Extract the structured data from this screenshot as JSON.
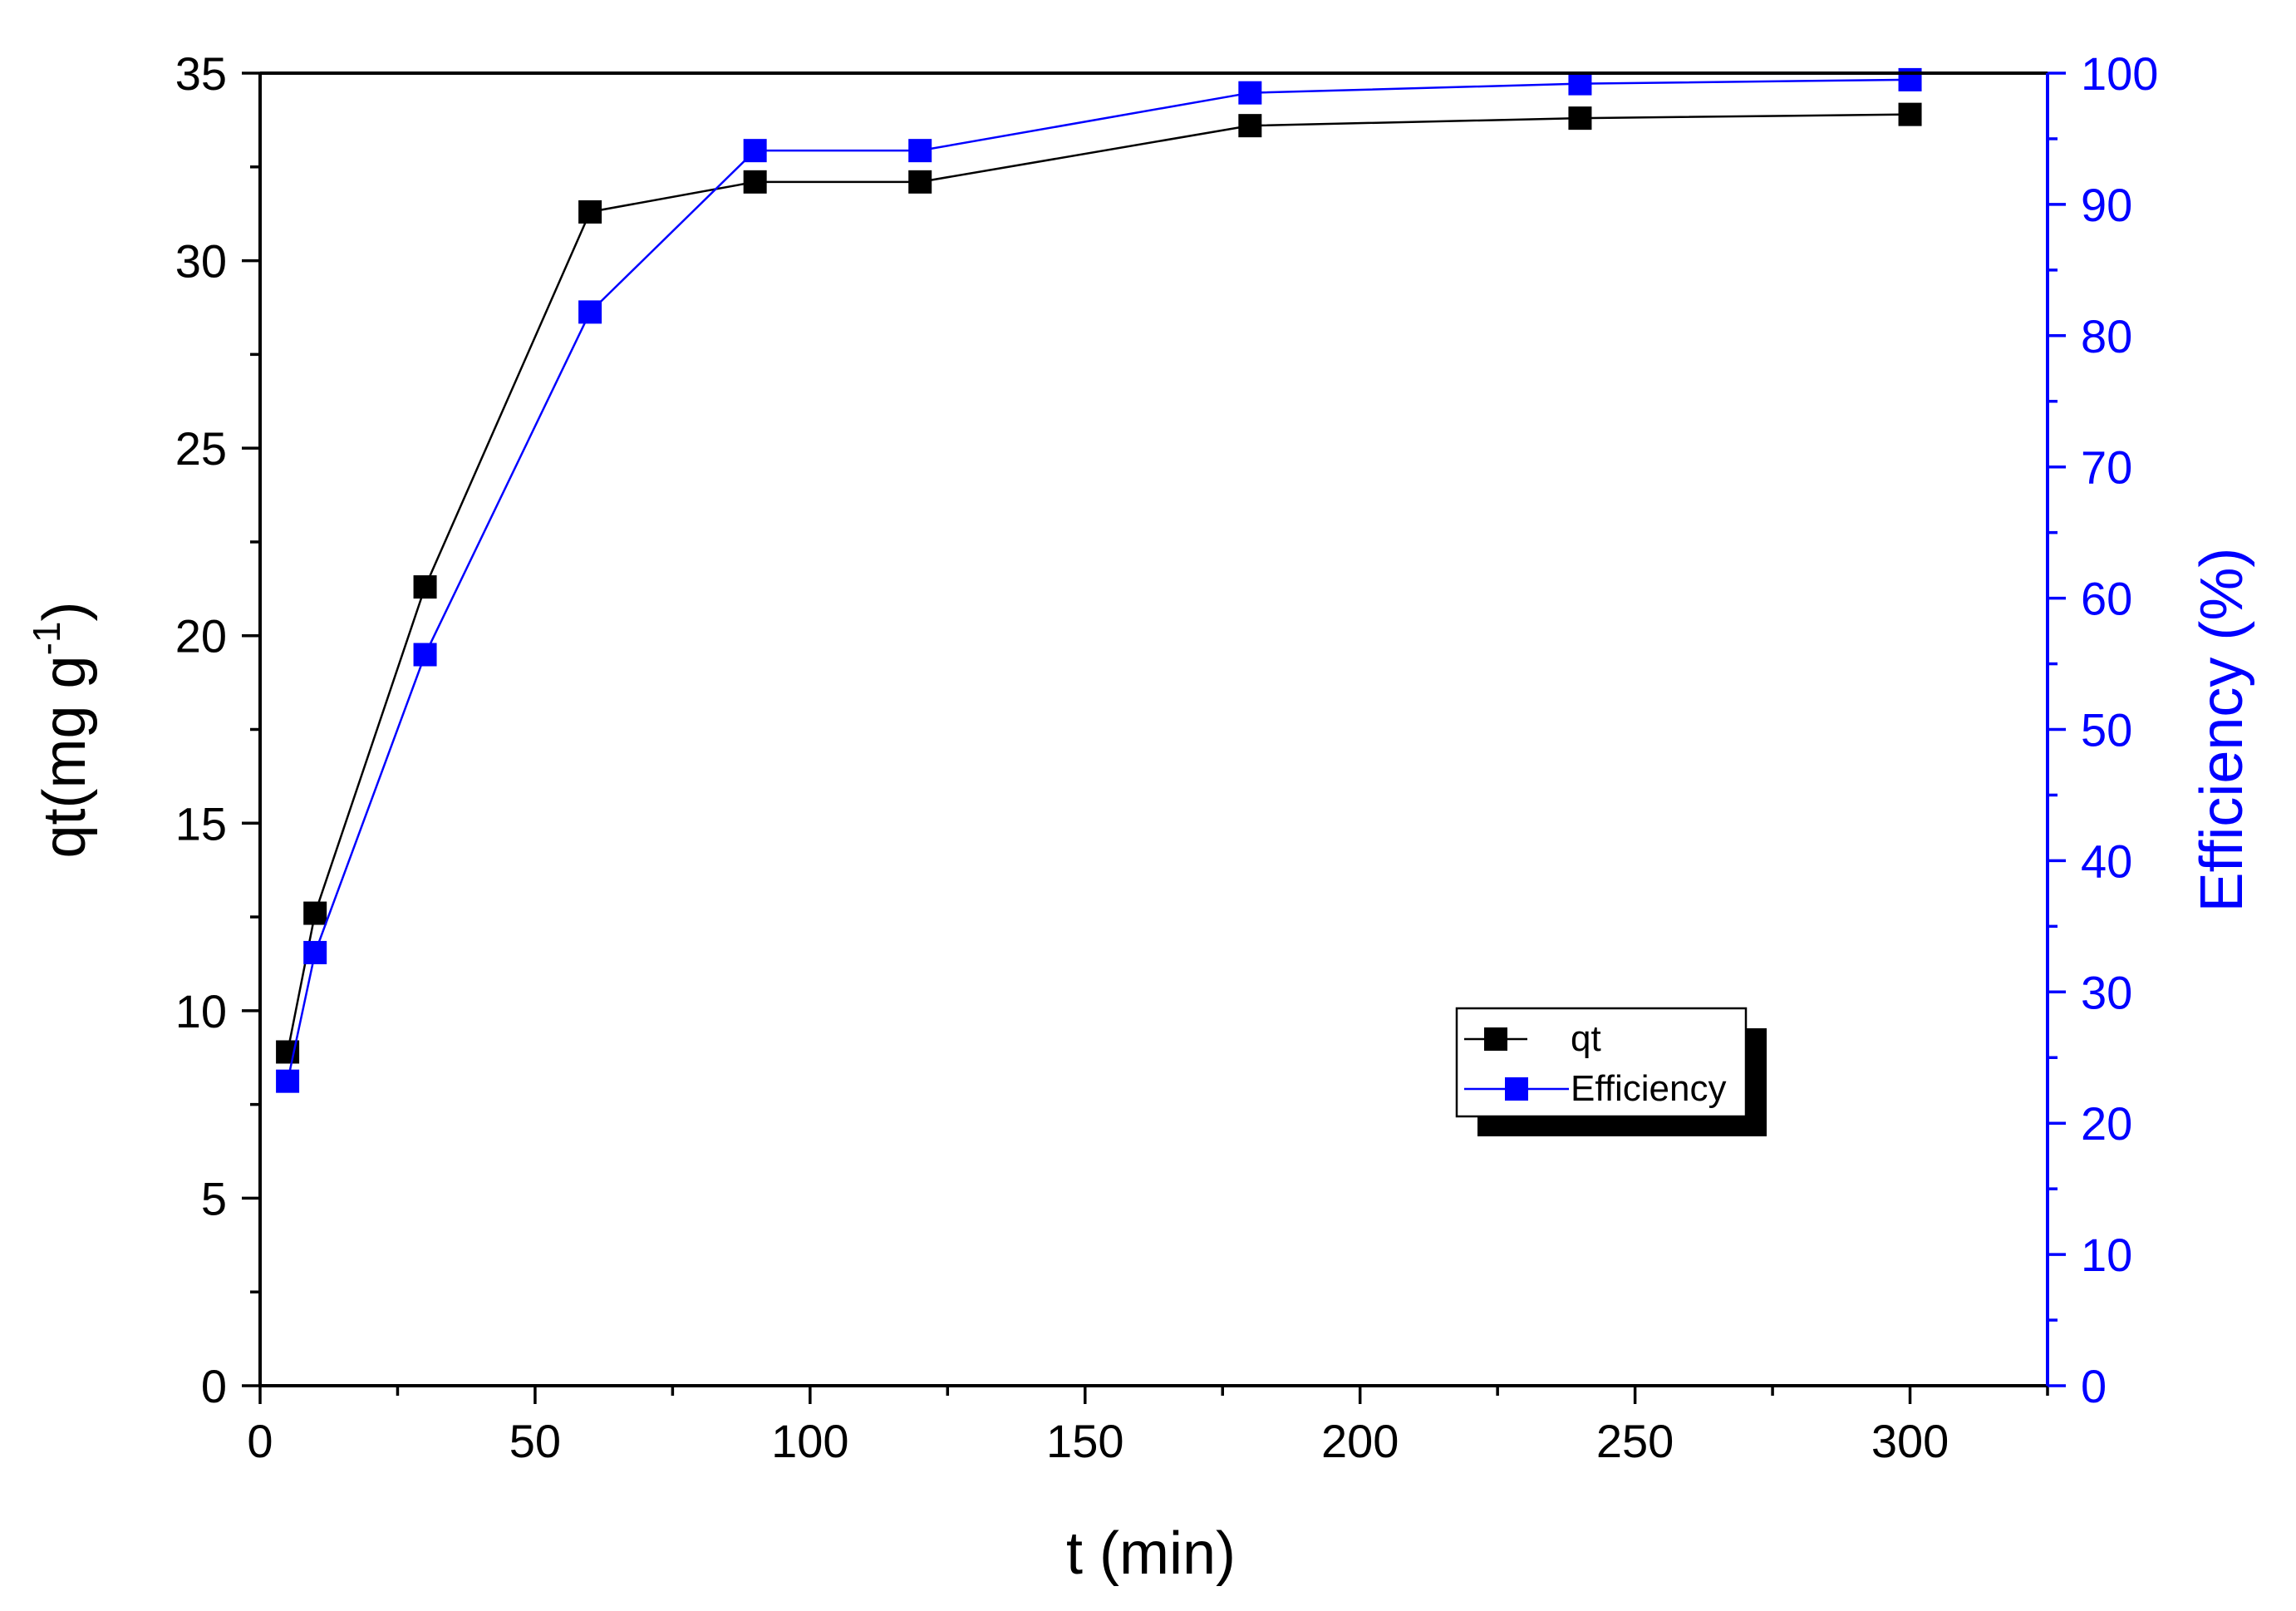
{
  "chart_data": {
    "type": "line",
    "x": [
      5,
      10,
      30,
      60,
      90,
      120,
      180,
      240,
      300
    ],
    "xlabel": "t (min)",
    "xlim": [
      0,
      325
    ],
    "xticks": [
      0,
      50,
      100,
      150,
      200,
      250,
      300
    ],
    "ylabel_left": {
      "main": "qt(mg g",
      "sup": "-1",
      "close": ")"
    },
    "ylim_left": [
      0,
      35
    ],
    "yticks_left": [
      0,
      5,
      10,
      15,
      20,
      25,
      30,
      35
    ],
    "ylabel_right": "Efficiency (%)",
    "ylim_right": [
      0,
      100
    ],
    "yticks_right": [
      0,
      10,
      20,
      30,
      40,
      50,
      60,
      70,
      80,
      90,
      100
    ],
    "legend_position": "center-right",
    "grid": false,
    "series": [
      {
        "name": "qt",
        "axis": "left",
        "color": "#000000",
        "marker": "square",
        "values": [
          8.9,
          12.6,
          21.3,
          31.3,
          32.1,
          32.1,
          33.6,
          33.8,
          33.9
        ]
      },
      {
        "name": "Efficiency",
        "axis": "right",
        "color": "#0000ff",
        "marker": "square",
        "values": [
          23.2,
          33.0,
          55.7,
          81.8,
          94.1,
          94.1,
          98.5,
          99.2,
          99.5
        ]
      }
    ]
  }
}
